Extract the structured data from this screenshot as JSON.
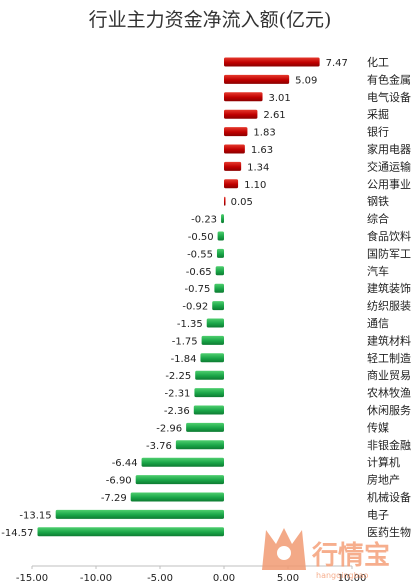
{
  "chart_data": {
    "type": "bar",
    "orientation": "horizontal",
    "title": "行业主力资金净流入额(亿元)",
    "categories": [
      "化工",
      "有色金属",
      "电气设备",
      "采掘",
      "银行",
      "家用电器",
      "交通运输",
      "公用事业",
      "钢铁",
      "综合",
      "食品饮料",
      "国防军工",
      "汽车",
      "建筑装饰",
      "纺织服装",
      "通信",
      "建筑材料",
      "轻工制造",
      "商业贸易",
      "农林牧渔",
      "休闲服务",
      "传媒",
      "非银金融",
      "计算机",
      "房地产",
      "机械设备",
      "电子",
      "医药生物"
    ],
    "values": [
      7.47,
      5.09,
      3.01,
      2.61,
      1.83,
      1.63,
      1.34,
      1.1,
      0.05,
      -0.23,
      -0.5,
      -0.55,
      -0.65,
      -0.75,
      -0.92,
      -1.35,
      -1.75,
      -1.84,
      -2.25,
      -2.31,
      -2.36,
      -2.96,
      -3.76,
      -6.44,
      -6.9,
      -7.29,
      -13.15,
      -14.57
    ],
    "value_labels": [
      "7.47",
      "5.09",
      "3.01",
      "2.61",
      "1.83",
      "1.63",
      "1.34",
      "1.10",
      "0.05",
      "-0.23",
      "-0.50",
      "-0.55",
      "-0.65",
      "-0.75",
      "-0.92",
      "-1.35",
      "-1.75",
      "-1.84",
      "-2.25",
      "-2.31",
      "-2.36",
      "-2.96",
      "-3.76",
      "-6.44",
      "-6.90",
      "-7.29",
      "-13.15",
      "-14.57"
    ],
    "xlim": [
      -15,
      10
    ],
    "x_ticks": [
      -15,
      -10,
      -5,
      0,
      5,
      10
    ],
    "x_tick_labels": [
      "-15.00",
      "-10.00",
      "-5.00",
      "0.00",
      "5.00",
      "10.00"
    ],
    "grid": false,
    "colors": {
      "positive": "#c00000",
      "negative": "#1aa648"
    }
  },
  "watermark": {
    "text": "行情宝",
    "subtext": "hangqingbao"
  }
}
